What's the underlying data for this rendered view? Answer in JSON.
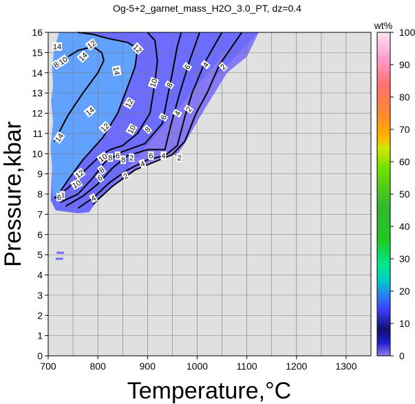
{
  "chart_data": {
    "type": "heatmap",
    "title": "Og-5+2_garnet_mass_H2O_3.0_PT, dz=0.4",
    "xlabel": "Temperature,°C",
    "ylabel": "Pressure,kbar",
    "xlim": [
      700,
      1350
    ],
    "ylim": [
      0,
      16
    ],
    "x_ticks": [
      "700",
      "800",
      "900",
      "1000",
      "1100",
      "1200",
      "1300"
    ],
    "x_tick_values": [
      700,
      800,
      900,
      1000,
      1100,
      1200,
      1300
    ],
    "y_ticks": [
      "0",
      "1",
      "2",
      "3",
      "4",
      "5",
      "6",
      "7",
      "8",
      "9",
      "10",
      "11",
      "12",
      "13",
      "14",
      "15",
      "16"
    ],
    "y_tick_values": [
      0,
      1,
      2,
      3,
      4,
      5,
      6,
      7,
      8,
      9,
      10,
      11,
      12,
      13,
      14,
      15,
      16
    ],
    "grid": true,
    "colorbar": {
      "label": "wt%",
      "range": [
        0,
        100
      ],
      "ticks": [
        "0",
        "10",
        "20",
        "30",
        "40",
        "50",
        "60",
        "70",
        "80",
        "90",
        "100"
      ],
      "tick_values": [
        0,
        10,
        20,
        30,
        40,
        50,
        60,
        70,
        80,
        90,
        100
      ],
      "stops": [
        {
          "value": 0,
          "color": "#8b7cf0"
        },
        {
          "value": 4,
          "color": "#1f20c9"
        },
        {
          "value": 8,
          "color": "#0f0f75"
        },
        {
          "value": 10,
          "color": "#1d1d9a"
        },
        {
          "value": 14,
          "color": "#3a3af5"
        },
        {
          "value": 18,
          "color": "#2f74f8"
        },
        {
          "value": 23,
          "color": "#00c8c8"
        },
        {
          "value": 28,
          "color": "#00e890"
        },
        {
          "value": 36,
          "color": "#22c822"
        },
        {
          "value": 46,
          "color": "#30b830"
        },
        {
          "value": 58,
          "color": "#74e000"
        },
        {
          "value": 64,
          "color": "#cfe800"
        },
        {
          "value": 68,
          "color": "#ffb000"
        },
        {
          "value": 74,
          "color": "#ff8c2a"
        },
        {
          "value": 84,
          "color": "#ff7070"
        },
        {
          "value": 92,
          "color": "#ff9ed2"
        },
        {
          "value": 100,
          "color": "#ffe3f1"
        }
      ]
    },
    "background_color": "#e0e0e0",
    "field_colors": {
      "low": "#8a7cf2",
      "mid": "#6c6cff",
      "high": "#62a2ff"
    },
    "field_boundary": [
      [
        722,
        16
      ],
      [
        1124,
        16
      ],
      [
        1100,
        14.8
      ],
      [
        1060,
        14
      ],
      [
        1030,
        12.8
      ],
      [
        1005,
        11.8
      ],
      [
        975,
        10.5
      ],
      [
        958,
        9.9
      ],
      [
        940,
        10.1
      ],
      [
        905,
        9.6
      ],
      [
        870,
        9.1
      ],
      [
        835,
        8.5
      ],
      [
        800,
        7.7
      ],
      [
        782,
        7.1
      ],
      [
        760,
        7.05
      ],
      [
        715,
        7.2
      ],
      [
        705,
        7.7
      ],
      [
        708,
        9.3
      ],
      [
        705,
        10.3
      ],
      [
        710,
        11.6
      ],
      [
        706,
        12.6
      ],
      [
        710,
        13.3
      ],
      [
        708,
        14.3
      ],
      [
        712,
        15.1
      ]
    ],
    "isolated_patches": [
      {
        "T": [
          717,
          732
        ],
        "P": 5.1
      },
      {
        "T": [
          715,
          730
        ],
        "P": 4.8
      }
    ],
    "contour_levels": [
      2,
      4,
      6,
      8,
      10,
      12,
      14
    ],
    "contours": [
      {
        "level": 14,
        "points": [
          [
            712,
            10.6
          ],
          [
            740,
            11.9
          ],
          [
            770,
            13.0
          ],
          [
            800,
            14.0
          ],
          [
            812,
            14.6
          ],
          [
            808,
            15.0
          ],
          [
            790,
            15.3
          ],
          [
            760,
            15.1
          ],
          [
            740,
            14.8
          ]
        ]
      },
      {
        "level": 12,
        "points": [
          [
            715,
            7.8
          ],
          [
            740,
            8.7
          ],
          [
            770,
            9.7
          ],
          [
            810,
            10.8
          ],
          [
            840,
            12.0
          ],
          [
            860,
            13.3
          ],
          [
            875,
            14.3
          ],
          [
            880,
            15.2
          ],
          [
            860,
            15.5
          ],
          [
            820,
            15.7
          ],
          [
            790,
            15.9
          ],
          [
            760,
            16.0
          ]
        ]
      },
      {
        "level": 10,
        "points": [
          [
            712,
            7.8
          ],
          [
            740,
            8.3
          ],
          [
            775,
            9.2
          ],
          [
            805,
            9.9
          ],
          [
            825,
            10.2
          ],
          [
            850,
            10.4
          ],
          [
            880,
            11.0
          ],
          [
            905,
            12.0
          ],
          [
            915,
            13.5
          ],
          [
            920,
            14.6
          ],
          [
            915,
            15.6
          ],
          [
            900,
            16.0
          ]
        ]
      },
      {
        "level": 8,
        "points": [
          [
            725,
            7.6
          ],
          [
            760,
            8.0
          ],
          [
            790,
            8.8
          ],
          [
            815,
            9.6
          ],
          [
            850,
            10.1
          ],
          [
            895,
            10.5
          ],
          [
            930,
            11.5
          ],
          [
            938,
            12.5
          ],
          [
            950,
            14.0
          ],
          [
            960,
            15.3
          ],
          [
            968,
            16.0
          ]
        ]
      },
      {
        "level": 6,
        "points": [
          [
            735,
            7.4
          ],
          [
            770,
            7.9
          ],
          [
            800,
            8.5
          ],
          [
            830,
            9.3
          ],
          [
            860,
            9.9
          ],
          [
            900,
            10.2
          ],
          [
            935,
            10.2
          ],
          [
            948,
            11.5
          ],
          [
            965,
            13.0
          ],
          [
            985,
            14.6
          ],
          [
            1005,
            16.0
          ]
        ]
      },
      {
        "level": 4,
        "points": [
          [
            760,
            7.3
          ],
          [
            790,
            7.8
          ],
          [
            825,
            8.6
          ],
          [
            860,
            9.2
          ],
          [
            900,
            9.7
          ],
          [
            935,
            9.9
          ],
          [
            960,
            10.4
          ],
          [
            975,
            11.8
          ],
          [
            990,
            13.0
          ],
          [
            1015,
            14.5
          ],
          [
            1050,
            16.0
          ]
        ]
      },
      {
        "level": 2,
        "points": [
          [
            790,
            7.5
          ],
          [
            830,
            8.4
          ],
          [
            875,
            9.2
          ],
          [
            915,
            9.6
          ],
          [
            950,
            9.95
          ],
          [
            975,
            10.6
          ],
          [
            998,
            12.0
          ],
          [
            1020,
            13.0
          ],
          [
            1045,
            14.4
          ],
          [
            1090,
            16.0
          ]
        ]
      }
    ],
    "contour_labels": [
      {
        "text": "14",
        "T": 718,
        "P": 15.3,
        "angle": 0
      },
      {
        "text": "10",
        "T": 730,
        "P": 14.6,
        "angle": -35
      },
      {
        "text": "8",
        "T": 716,
        "P": 14.4,
        "angle": -35
      },
      {
        "text": "14",
        "T": 770,
        "P": 14.8,
        "angle": -45
      },
      {
        "text": "12",
        "T": 787,
        "P": 15.4,
        "angle": -35
      },
      {
        "text": "12",
        "T": 880,
        "P": 15.2,
        "angle": 45
      },
      {
        "text": "14",
        "T": 838,
        "P": 14.1,
        "angle": 80
      },
      {
        "text": "12",
        "T": 863,
        "P": 12.5,
        "angle": -60
      },
      {
        "text": "14",
        "T": 784,
        "P": 12.1,
        "angle": -40
      },
      {
        "text": "10",
        "T": 912,
        "P": 13.5,
        "angle": -70
      },
      {
        "text": "8",
        "T": 944,
        "P": 13.4,
        "angle": -60
      },
      {
        "text": "6",
        "T": 980,
        "P": 14.3,
        "angle": -55
      },
      {
        "text": "4",
        "T": 1017,
        "P": 14.4,
        "angle": -50
      },
      {
        "text": "2",
        "T": 1052,
        "P": 14.3,
        "angle": -45
      },
      {
        "text": "12",
        "T": 814,
        "P": 11.3,
        "angle": -45
      },
      {
        "text": "10",
        "T": 868,
        "P": 11.2,
        "angle": -60
      },
      {
        "text": "8",
        "T": 900,
        "P": 11.2,
        "angle": -45
      },
      {
        "text": "6",
        "T": 932,
        "P": 11.8,
        "angle": -60
      },
      {
        "text": "4",
        "T": 960,
        "P": 12.0,
        "angle": -60
      },
      {
        "text": "2",
        "T": 983,
        "P": 12.2,
        "angle": -55
      },
      {
        "text": "14",
        "T": 722,
        "P": 10.8,
        "angle": -55
      },
      {
        "text": "10",
        "T": 810,
        "P": 9.8,
        "angle": -35
      },
      {
        "text": "8",
        "T": 825,
        "P": 9.8,
        "angle": 0
      },
      {
        "text": "6",
        "T": 840,
        "P": 9.9,
        "angle": 0
      },
      {
        "text": "8",
        "T": 851,
        "P": 9.7,
        "angle": 0
      },
      {
        "text": "2",
        "T": 868,
        "P": 9.8,
        "angle": 0
      },
      {
        "text": "6",
        "T": 907,
        "P": 9.9,
        "angle": 0
      },
      {
        "text": "4",
        "T": 932,
        "P": 9.9,
        "angle": 0
      },
      {
        "text": "2",
        "T": 964,
        "P": 9.8,
        "angle": 0
      },
      {
        "text": "4",
        "T": 890,
        "P": 9.5,
        "angle": -20
      },
      {
        "text": "8",
        "T": 808,
        "P": 9.2,
        "angle": -35
      },
      {
        "text": "12",
        "T": 763,
        "P": 9.0,
        "angle": -35
      },
      {
        "text": "6",
        "T": 804,
        "P": 8.8,
        "angle": -35
      },
      {
        "text": "2",
        "T": 856,
        "P": 8.9,
        "angle": -30
      },
      {
        "text": "10",
        "T": 757,
        "P": 8.5,
        "angle": -30
      },
      {
        "text": "8",
        "T": 728,
        "P": 7.95,
        "angle": 0
      },
      {
        "text": "6",
        "T": 722,
        "P": 7.85,
        "angle": 0
      },
      {
        "text": "4",
        "T": 791,
        "P": 7.8,
        "angle": -30
      }
    ]
  }
}
